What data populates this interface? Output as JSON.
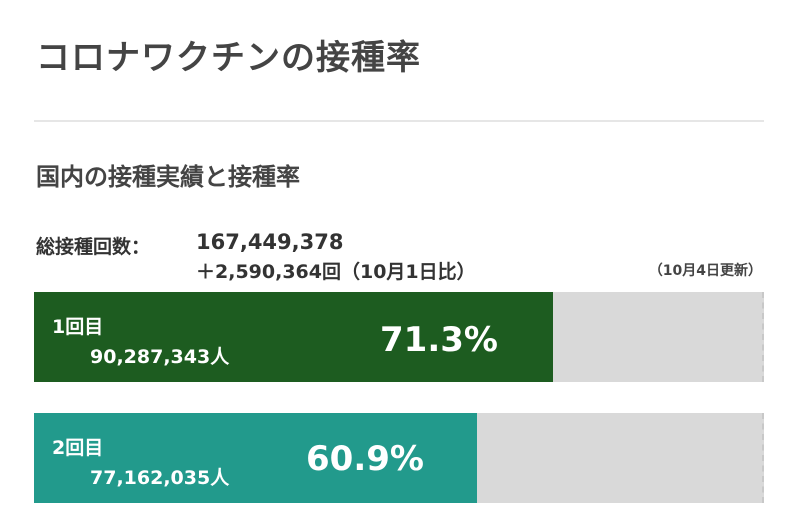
{
  "page": {
    "title": "コロナワクチンの接種率"
  },
  "section": {
    "title": "国内の接種実績と接種率"
  },
  "total": {
    "label": "総接種回数：",
    "value": "167,449,378",
    "diff": "＋2,590,364回（10月1日比）",
    "updated": "（10月4日更新）"
  },
  "doses": [
    {
      "label": "1回目",
      "count": "90,287,343人",
      "rate_text": "71.3%",
      "rate": 71.3,
      "color": "#1d5c20"
    },
    {
      "label": "2回目",
      "count": "77,162,035人",
      "rate_text": "60.9%",
      "rate": 60.9,
      "color": "#229a8c"
    }
  ],
  "colors": {
    "empty_bar": "#d9d9d9"
  }
}
